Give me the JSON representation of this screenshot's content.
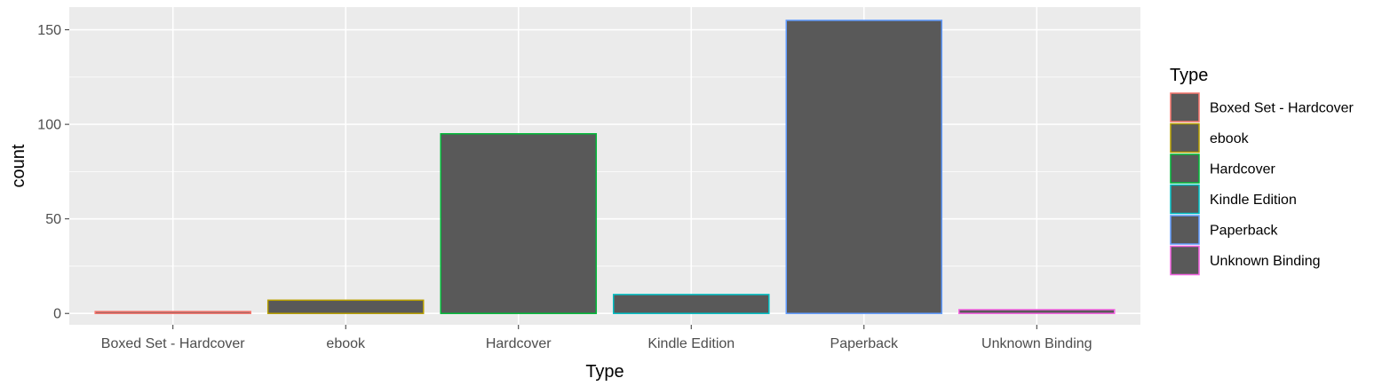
{
  "chart_data": {
    "type": "bar",
    "xlabel": "Type",
    "ylabel": "count",
    "categories": [
      "Boxed Set - Hardcover",
      "ebook",
      "Hardcover",
      "Kindle Edition",
      "Paperback",
      "Unknown Binding"
    ],
    "values": [
      1,
      7,
      95,
      10,
      155,
      2
    ],
    "ylim": [
      -6,
      162
    ],
    "yticks": [
      0,
      50,
      100,
      150
    ],
    "grid": true,
    "fill_color": "#595959",
    "outline_colors": [
      "#F8766D",
      "#B79F00",
      "#00BA38",
      "#00BFC4",
      "#619CFF",
      "#F564E3"
    ],
    "panel_background": "#EBEBEB",
    "legend": {
      "title": "Type",
      "position": "right",
      "entries": [
        "Boxed Set - Hardcover",
        "ebook",
        "Hardcover",
        "Kindle Edition",
        "Paperback",
        "Unknown Binding"
      ]
    }
  }
}
